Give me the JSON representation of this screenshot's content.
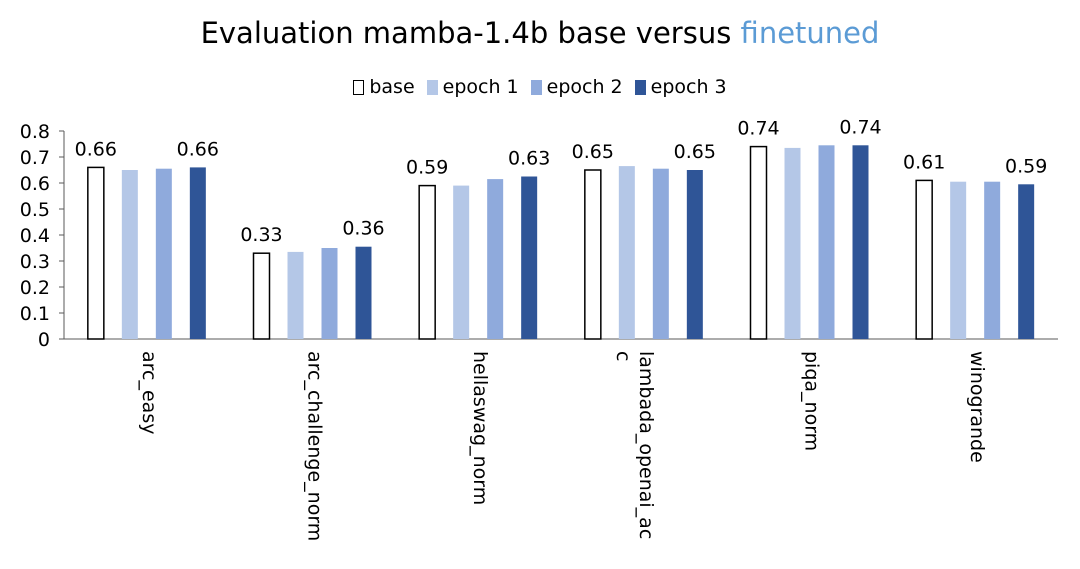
{
  "chart_data": {
    "type": "bar",
    "title_main": "Evaluation mamba-1.4b base versus ",
    "title_highlight": "finetuned",
    "title_highlight_color": "#5b9bd5",
    "legend_position": "top",
    "grid": false,
    "ylim": [
      0,
      0.8
    ],
    "yticks": [
      "0",
      "0.1",
      "0.2",
      "0.3",
      "0.4",
      "0.5",
      "0.6",
      "0.7",
      "0.8"
    ],
    "categories": [
      "arc_easy",
      "arc_challenge_norm",
      "hellaswag_norm",
      "lambada_openai_ac\nc",
      "piqa_norm",
      "winogrande"
    ],
    "series": [
      {
        "name": "base",
        "color": "#ffffff",
        "stroke": "#000000",
        "values": [
          0.66,
          0.33,
          0.59,
          0.65,
          0.74,
          0.61
        ]
      },
      {
        "name": "epoch 1",
        "color": "#b4c7e7",
        "stroke": "none",
        "values": [
          0.65,
          0.335,
          0.59,
          0.665,
          0.735,
          0.605
        ]
      },
      {
        "name": "epoch 2",
        "color": "#8faadc",
        "stroke": "none",
        "values": [
          0.655,
          0.35,
          0.615,
          0.655,
          0.745,
          0.605
        ]
      },
      {
        "name": "epoch 3",
        "color": "#2f5597",
        "stroke": "none",
        "values": [
          0.66,
          0.355,
          0.625,
          0.65,
          0.745,
          0.595
        ]
      }
    ],
    "data_labels": [
      {
        "category": 0,
        "series": 0,
        "text": "0.66"
      },
      {
        "category": 0,
        "series": 3,
        "text": "0.66"
      },
      {
        "category": 1,
        "series": 0,
        "text": "0.33"
      },
      {
        "category": 1,
        "series": 3,
        "text": "0.36"
      },
      {
        "category": 2,
        "series": 0,
        "text": "0.59"
      },
      {
        "category": 2,
        "series": 3,
        "text": "0.63"
      },
      {
        "category": 3,
        "series": 0,
        "text": "0.65"
      },
      {
        "category": 3,
        "series": 3,
        "text": "0.65"
      },
      {
        "category": 4,
        "series": 0,
        "text": "0.74"
      },
      {
        "category": 4,
        "series": 3,
        "text": "0.74"
      },
      {
        "category": 5,
        "series": 0,
        "text": "0.61"
      },
      {
        "category": 5,
        "series": 3,
        "text": "0.59"
      }
    ]
  }
}
